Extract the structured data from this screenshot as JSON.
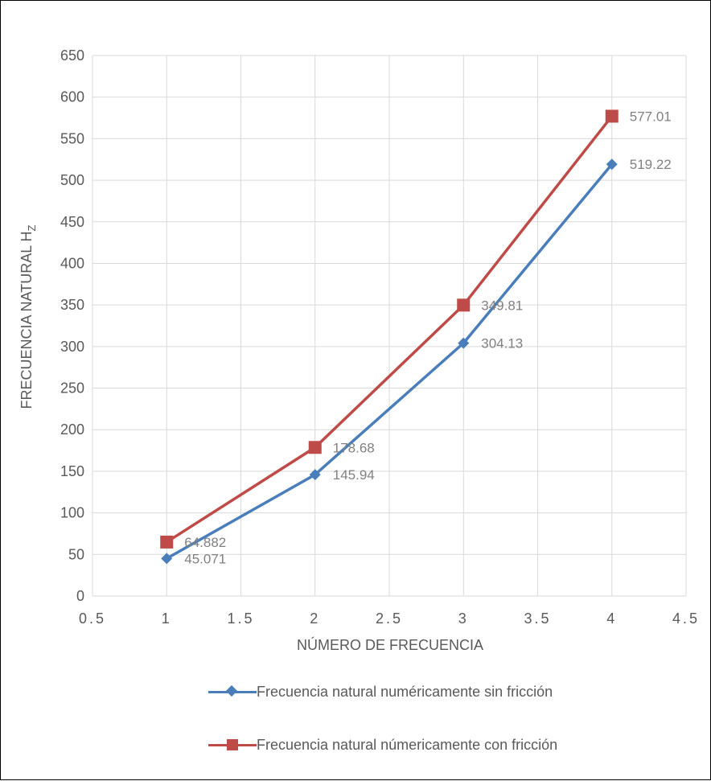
{
  "chart_data": {
    "type": "line",
    "xlabel": "NÚMERO DE FRECUENCIA",
    "ylabel": "FRECUENCIA NATURAL H",
    "ylabel_sub": "Z",
    "xlim": [
      0.5,
      4.5
    ],
    "ylim": [
      0,
      650
    ],
    "x_ticks": [
      "0.5",
      "1",
      "1.5",
      "2",
      "2.5",
      "3",
      "3.5",
      "4",
      "4.5"
    ],
    "y_ticks": [
      "0",
      "50",
      "100",
      "150",
      "200",
      "250",
      "300",
      "350",
      "400",
      "450",
      "500",
      "550",
      "600",
      "650"
    ],
    "grid": true,
    "legend_position": "bottom",
    "x": [
      1,
      2,
      3,
      4
    ],
    "series": [
      {
        "name": "Frecuencia natural numéricamente sin fricción",
        "values": [
          45.071,
          145.94,
          304.13,
          519.22
        ],
        "labels": [
          "45.071",
          "145.94",
          "304.13",
          "519.22"
        ],
        "color": "#4a7ebb",
        "marker": "diamond"
      },
      {
        "name": "Frecuencia natural númericamente con fricción",
        "values": [
          64.882,
          178.68,
          349.81,
          577.01
        ],
        "labels": [
          "64.882",
          "178.68",
          "349.81",
          "577.01"
        ],
        "color": "#be4b48",
        "marker": "square"
      }
    ]
  }
}
